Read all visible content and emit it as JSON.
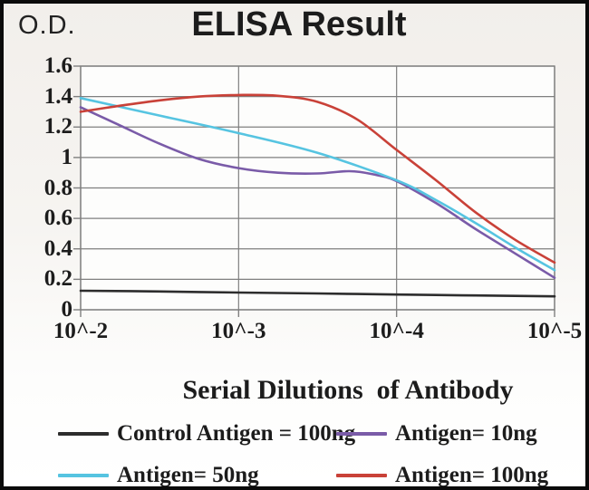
{
  "chart_data": {
    "type": "line",
    "title": "ELISA Result",
    "ylabel": "O.D.",
    "xlabel": "Serial Dilutions  of Antibody",
    "ylim": [
      0,
      1.6
    ],
    "grid": true,
    "legend_position": "bottom",
    "x_ticks": [
      {
        "d": 0,
        "label": "10^-2"
      },
      {
        "d": 1,
        "label": "10^-3"
      },
      {
        "d": 2,
        "label": "10^-4"
      },
      {
        "d": 3,
        "label": "10^-5"
      }
    ],
    "y_ticks": [
      {
        "v": 0,
        "label": "0"
      },
      {
        "v": 0.2,
        "label": "0.2"
      },
      {
        "v": 0.4,
        "label": "0.4"
      },
      {
        "v": 0.6,
        "label": "0.6"
      },
      {
        "v": 0.8,
        "label": "0.8"
      },
      {
        "v": 1,
        "label": "1"
      },
      {
        "v": 1.2,
        "label": "1.2"
      },
      {
        "v": 1.4,
        "label": "1.4"
      },
      {
        "v": 1.6,
        "label": "1.6"
      }
    ],
    "series": [
      {
        "name": "Control Antigen = 100ng",
        "color": "#2d2d2d",
        "points": [
          [
            0,
            0.125
          ],
          [
            0.5,
            0.12
          ],
          [
            1,
            0.113
          ],
          [
            1.5,
            0.107
          ],
          [
            2,
            0.1
          ],
          [
            2.5,
            0.094
          ],
          [
            3,
            0.088
          ]
        ]
      },
      {
        "name": "Antigen= 10ng",
        "color": "#7a5ba8",
        "points": [
          [
            0,
            1.33
          ],
          [
            0.25,
            1.21
          ],
          [
            0.5,
            1.09
          ],
          [
            0.75,
            0.99
          ],
          [
            1,
            0.93
          ],
          [
            1.25,
            0.9
          ],
          [
            1.5,
            0.895
          ],
          [
            1.7,
            0.91
          ],
          [
            1.85,
            0.89
          ],
          [
            2,
            0.845
          ],
          [
            2.25,
            0.7
          ],
          [
            2.5,
            0.53
          ],
          [
            2.75,
            0.37
          ],
          [
            3,
            0.21
          ]
        ]
      },
      {
        "name": "Antigen= 50ng",
        "color": "#56c4e1",
        "points": [
          [
            0,
            1.39
          ],
          [
            0.5,
            1.275
          ],
          [
            1,
            1.16
          ],
          [
            1.5,
            1.03
          ],
          [
            2,
            0.85
          ],
          [
            2.25,
            0.72
          ],
          [
            2.5,
            0.57
          ],
          [
            2.75,
            0.41
          ],
          [
            3,
            0.26
          ]
        ]
      },
      {
        "name": "Antigen= 100ng",
        "color": "#c94138",
        "points": [
          [
            0,
            1.3
          ],
          [
            0.25,
            1.34
          ],
          [
            0.5,
            1.375
          ],
          [
            0.75,
            1.4
          ],
          [
            1,
            1.41
          ],
          [
            1.25,
            1.405
          ],
          [
            1.5,
            1.365
          ],
          [
            1.75,
            1.25
          ],
          [
            2,
            1.05
          ],
          [
            2.25,
            0.85
          ],
          [
            2.5,
            0.64
          ],
          [
            2.75,
            0.46
          ],
          [
            3,
            0.31
          ]
        ]
      }
    ]
  },
  "styles": {
    "grid_color": "#7f7f7f",
    "axis_color": "#7f7f7f",
    "text_color": "#1c1c1c",
    "plot_bg": "#fdfdfc",
    "frame_color": "#0b0b0b"
  }
}
